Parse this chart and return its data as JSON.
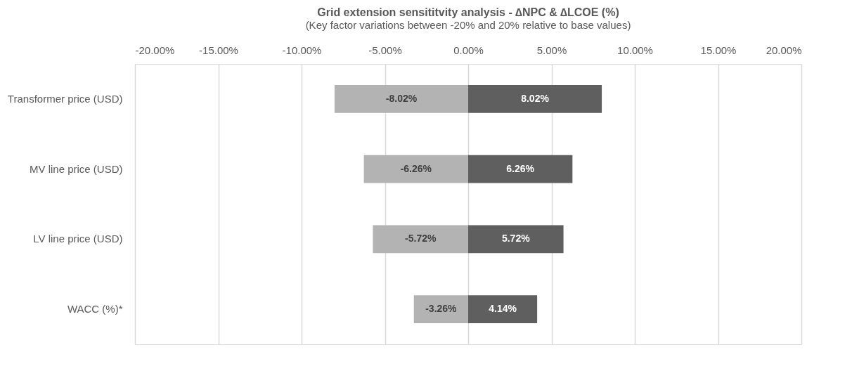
{
  "chart_data": {
    "type": "bar",
    "orientation": "horizontal",
    "stacked": true,
    "title": "Grid extension sensititvity analysis - ∆NPC & ∆LCOE (%)",
    "subtitle": "(Key factor variations between -20% and 20% relative to base values)",
    "categories": [
      "Transformer price (USD)",
      "MV line price (USD)",
      "LV line price (USD)",
      "WACC (%)*"
    ],
    "series": [
      {
        "color": "#b3b3b3",
        "values": [
          -8.02,
          -6.26,
          -5.72,
          -3.26
        ],
        "value_labels": [
          "-8.02%",
          "-6.26%",
          "-5.72%",
          "-3.26%"
        ]
      },
      {
        "color": "#5f5f5f",
        "values": [
          8.02,
          6.26,
          5.72,
          4.14
        ],
        "value_labels": [
          "8.02%",
          "6.26%",
          "5.72%",
          "4.14%"
        ]
      }
    ],
    "xlim": [
      -20,
      20
    ],
    "xticks": [
      {
        "value": -20,
        "label": "-20.00%"
      },
      {
        "value": -15,
        "label": "-15.00%"
      },
      {
        "value": -10,
        "label": "-10.00%"
      },
      {
        "value": -5,
        "label": "-5.00%"
      },
      {
        "value": 0,
        "label": "0.00%"
      },
      {
        "value": 5,
        "label": "5.00%"
      },
      {
        "value": 10,
        "label": "10.00%"
      },
      {
        "value": 15,
        "label": "15.00%"
      },
      {
        "value": 20,
        "label": "20.00%"
      }
    ],
    "grid": "x",
    "legend": false
  }
}
